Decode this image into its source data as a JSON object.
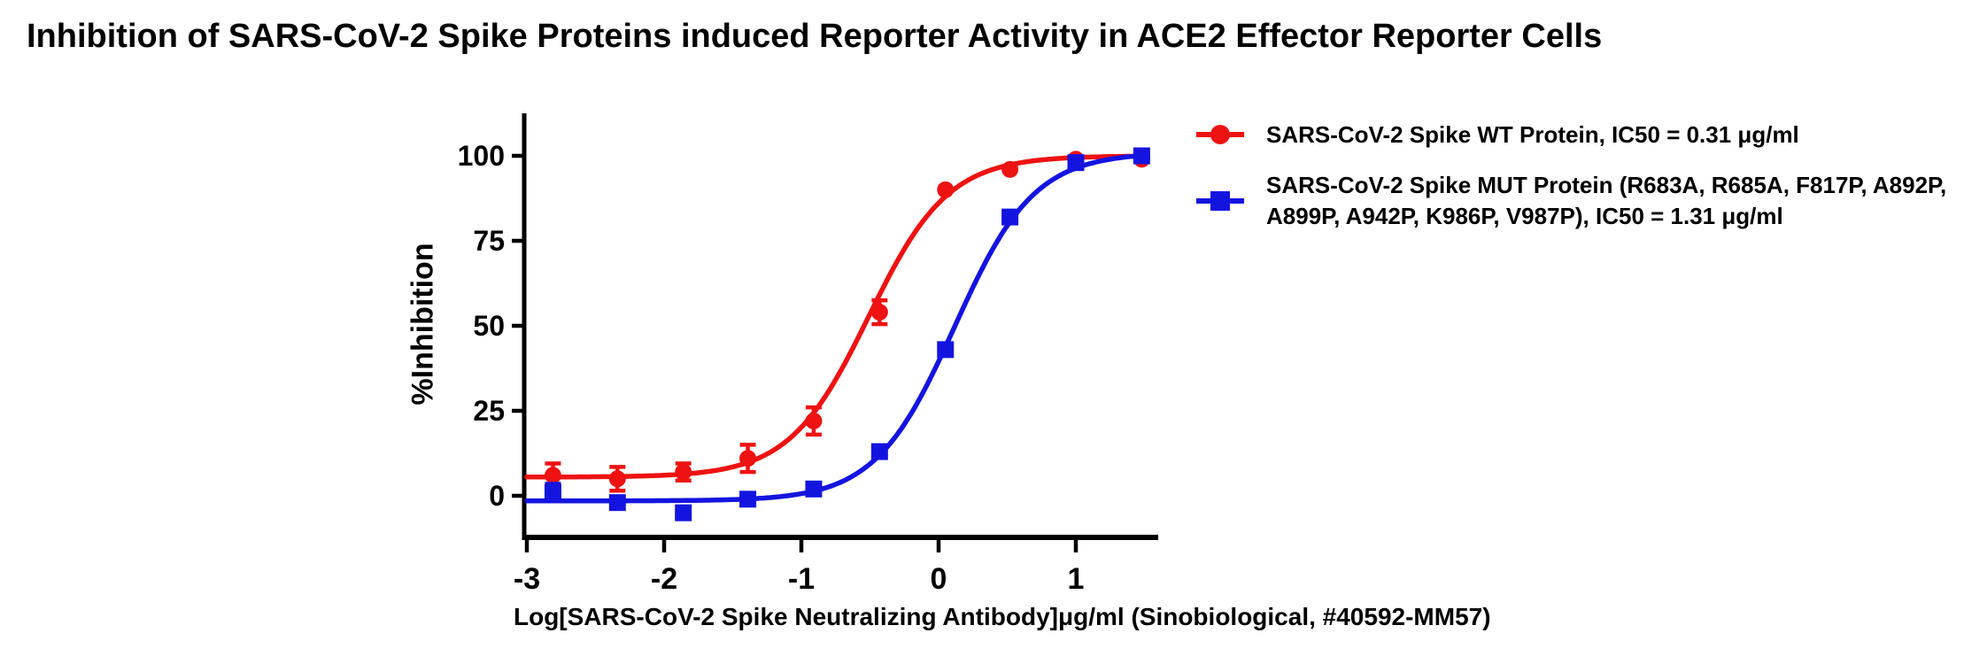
{
  "title": "Inhibition of SARS-CoV-2 Spike Proteins induced Reporter Activity in ACE2 Effector Reporter Cells",
  "colors": {
    "wt": "#ee1212",
    "mut": "#1414e0",
    "axis": "#000000",
    "text": "#000000"
  },
  "legend": [
    {
      "series": "wt",
      "marker": "circle",
      "lines": [
        "SARS-CoV-2 Spike WT Protein,  IC50 = 0.31 μg/ml"
      ]
    },
    {
      "series": "mut",
      "marker": "square",
      "lines": [
        "SARS-CoV-2 Spike MUT Protein (R683A, R685A, F817P, A892P,",
        "A899P, A942P, K986P, V987P), IC50 = 1.31 μg/ml"
      ]
    }
  ],
  "chart_data": {
    "type": "scatter",
    "title": "Inhibition of SARS-CoV-2 Spike Proteins induced Reporter Activity in ACE2 Effector Reporter Cells",
    "xlabel": "Log[SARS-CoV-2 Spike Neutralizing Antibody]μg/ml (Sinobiological, #40592-MM57)",
    "ylabel": "%Inhibition",
    "xlim": [
      -3,
      1.6
    ],
    "ylim": [
      -12,
      112
    ],
    "xticks": [
      -3,
      -2,
      -1,
      0,
      1
    ],
    "yticks": [
      0,
      25,
      50,
      75,
      100
    ],
    "grid": false,
    "legend_position": "right",
    "x": [
      -2.81,
      -2.34,
      -1.86,
      -1.39,
      -0.91,
      -0.43,
      0.05,
      0.52,
      1.0,
      1.48
    ],
    "series": [
      {
        "name": "SARS-CoV-2 Spike WT Protein",
        "ic50": "0.31 μg/ml",
        "marker": "circle",
        "color": "#ee1212",
        "values": [
          6,
          5,
          7,
          11,
          22,
          54,
          90,
          96,
          99,
          99
        ],
        "errors": [
          3.5,
          3.5,
          2.5,
          4,
          4,
          3.5,
          0,
          0,
          0,
          0
        ],
        "fit": {
          "bottom": 5.5,
          "top": 100,
          "logIC50": -0.509,
          "hill": 1.5
        }
      },
      {
        "name": "SARS-CoV-2 Spike MUT Protein (R683A, R685A, F817P, A892P, A899P, A942P, K986P, V987P)",
        "ic50": "1.31 μg/ml",
        "marker": "square",
        "color": "#1414e0",
        "values": [
          1,
          -2,
          -5,
          -1,
          2,
          13,
          43,
          82,
          98,
          100
        ],
        "errors": [
          2.5,
          0,
          0,
          0,
          0,
          0,
          0,
          0,
          0,
          0
        ],
        "fit": {
          "bottom": -1.5,
          "top": 101,
          "logIC50": 0.117,
          "hill": 1.5
        }
      }
    ]
  }
}
